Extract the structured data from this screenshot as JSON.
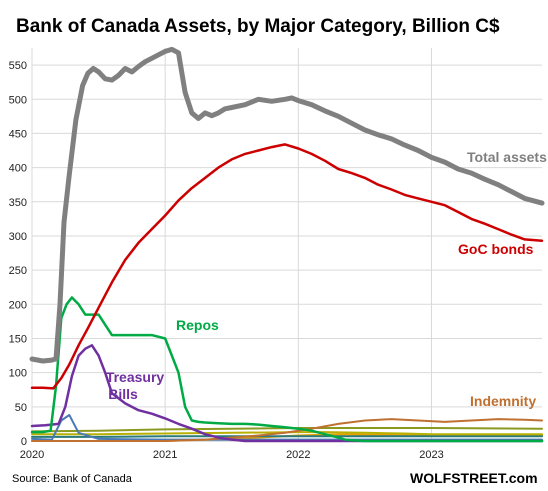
{
  "chart_data": {
    "type": "line",
    "title": "Bank of Canada Assets, by Major Category, Billion C$",
    "source": "Source: Bank of Canada",
    "brand": "WOLFSTREET.com",
    "ylim": [
      0,
      575
    ],
    "yticks": [
      0,
      50,
      100,
      150,
      200,
      250,
      300,
      350,
      400,
      450,
      500,
      550
    ],
    "xlim": [
      2020.0,
      2023.83
    ],
    "xticks": [
      {
        "value": 2020,
        "label": "2020"
      },
      {
        "value": 2021,
        "label": "2021"
      },
      {
        "value": 2022,
        "label": "2022"
      },
      {
        "value": 2023,
        "label": "2023"
      }
    ],
    "grid": true,
    "series": [
      {
        "name": "Total assets",
        "color": "#808080",
        "x": [
          2020.0,
          2020.08,
          2020.14,
          2020.18,
          2020.21,
          2020.24,
          2020.28,
          2020.33,
          2020.38,
          2020.42,
          2020.46,
          2020.5,
          2020.55,
          2020.6,
          2020.65,
          2020.7,
          2020.75,
          2020.8,
          2020.85,
          2020.9,
          2020.95,
          2021.0,
          2021.05,
          2021.1,
          2021.15,
          2021.2,
          2021.25,
          2021.3,
          2021.35,
          2021.4,
          2021.45,
          2021.5,
          2021.6,
          2021.7,
          2021.8,
          2021.9,
          2021.95,
          2022.0,
          2022.1,
          2022.2,
          2022.3,
          2022.4,
          2022.5,
          2022.6,
          2022.7,
          2022.8,
          2022.9,
          2023.0,
          2023.1,
          2023.2,
          2023.3,
          2023.4,
          2023.5,
          2023.6,
          2023.7,
          2023.83
        ],
        "values": [
          120,
          117,
          118,
          120,
          200,
          320,
          390,
          470,
          520,
          538,
          545,
          540,
          530,
          528,
          535,
          545,
          540,
          548,
          555,
          560,
          565,
          570,
          573,
          568,
          510,
          480,
          472,
          480,
          476,
          480,
          486,
          488,
          492,
          500,
          497,
          500,
          502,
          498,
          492,
          483,
          475,
          465,
          455,
          448,
          442,
          433,
          425,
          415,
          408,
          398,
          392,
          383,
          375,
          365,
          355,
          348
        ]
      },
      {
        "name": "GoC bonds",
        "color": "#cc0000",
        "x": [
          2020.0,
          2020.08,
          2020.16,
          2020.22,
          2020.28,
          2020.35,
          2020.42,
          2020.5,
          2020.6,
          2020.7,
          2020.8,
          2020.9,
          2021.0,
          2021.1,
          2021.2,
          2021.3,
          2021.4,
          2021.5,
          2021.6,
          2021.7,
          2021.8,
          2021.9,
          2022.0,
          2022.1,
          2022.2,
          2022.3,
          2022.4,
          2022.5,
          2022.6,
          2022.7,
          2022.8,
          2022.9,
          2023.0,
          2023.1,
          2023.2,
          2023.3,
          2023.4,
          2023.5,
          2023.6,
          2023.7,
          2023.83
        ],
        "values": [
          78,
          78,
          77,
          92,
          112,
          140,
          165,
          195,
          232,
          265,
          290,
          310,
          330,
          352,
          370,
          385,
          400,
          412,
          420,
          425,
          430,
          434,
          428,
          420,
          410,
          398,
          392,
          385,
          375,
          368,
          360,
          355,
          350,
          345,
          335,
          325,
          318,
          310,
          302,
          295,
          293
        ]
      },
      {
        "name": "Repos",
        "color": "#00aa44",
        "x": [
          2020.0,
          2020.08,
          2020.14,
          2020.18,
          2020.22,
          2020.26,
          2020.3,
          2020.35,
          2020.4,
          2020.45,
          2020.5,
          2020.55,
          2020.6,
          2020.7,
          2020.8,
          2020.9,
          2021.0,
          2021.1,
          2021.15,
          2021.2,
          2021.25,
          2021.3,
          2021.4,
          2021.5,
          2021.6,
          2021.7,
          2021.8,
          2021.9,
          2022.0,
          2022.1,
          2022.2,
          2022.3,
          2022.35,
          2022.4,
          2022.5,
          2023.0,
          2023.83
        ],
        "values": [
          13,
          13,
          15,
          80,
          180,
          200,
          210,
          200,
          185,
          185,
          185,
          170,
          155,
          155,
          155,
          155,
          150,
          100,
          50,
          30,
          28,
          27,
          26,
          25,
          25,
          24,
          22,
          20,
          18,
          15,
          10,
          5,
          2,
          1,
          0,
          0,
          0
        ]
      },
      {
        "name": "Treasury Bills",
        "color": "#7030a0",
        "x": [
          2020.0,
          2020.1,
          2020.2,
          2020.25,
          2020.3,
          2020.35,
          2020.4,
          2020.45,
          2020.5,
          2020.55,
          2020.6,
          2020.7,
          2020.8,
          2020.9,
          2021.0,
          2021.1,
          2021.2,
          2021.3,
          2021.4,
          2021.5,
          2021.6,
          2022.0,
          2023.83
        ],
        "values": [
          22,
          23,
          25,
          50,
          95,
          125,
          135,
          140,
          125,
          100,
          70,
          55,
          45,
          40,
          33,
          25,
          18,
          10,
          5,
          2,
          0,
          0,
          0
        ]
      },
      {
        "name": "Indemnity",
        "color": "#c07030",
        "x": [
          2020.0,
          2021.0,
          2021.3,
          2021.5,
          2021.7,
          2021.9,
          2022.1,
          2022.3,
          2022.5,
          2022.7,
          2022.9,
          2023.1,
          2023.3,
          2023.5,
          2023.7,
          2023.83
        ],
        "values": [
          0,
          0,
          2,
          5,
          8,
          12,
          18,
          25,
          30,
          32,
          30,
          28,
          30,
          32,
          31,
          30
        ]
      },
      {
        "name": "",
        "color": "#4a7ab5",
        "x": [
          2020.0,
          2020.15,
          2020.22,
          2020.28,
          2020.35,
          2020.5,
          2021.0,
          2021.5,
          2022.0,
          2022.5,
          2023.0,
          2023.83
        ],
        "values": [
          3,
          2,
          30,
          38,
          12,
          3,
          2,
          2,
          2,
          2,
          2,
          2
        ]
      },
      {
        "name": "",
        "color": "#b8b000",
        "x": [
          2020.0,
          2020.5,
          2021.0,
          2021.5,
          2022.0,
          2022.2,
          2022.5,
          2022.8,
          2023.0,
          2023.83
        ],
        "values": [
          10,
          10,
          11,
          12,
          13,
          13,
          12,
          11,
          10,
          10
        ]
      },
      {
        "name": "",
        "color": "#8a9a20",
        "x": [
          2020.0,
          2020.5,
          2021.0,
          2021.5,
          2022.0,
          2022.5,
          2023.0,
          2023.83
        ],
        "values": [
          14,
          15,
          17,
          18,
          19,
          19,
          19,
          18
        ]
      },
      {
        "name": "",
        "color": "#2a7a7a",
        "x": [
          2020.0,
          2020.5,
          2021.0,
          2021.5,
          2022.0,
          2022.5,
          2023.0,
          2023.83
        ],
        "values": [
          6,
          6,
          7,
          7,
          7,
          7,
          7,
          7
        ]
      },
      {
        "name": "",
        "color": "#e8a000",
        "x": [
          2020.0,
          2021.0,
          2021.5,
          2022.0,
          2022.3,
          2022.6,
          2023.0,
          2023.83
        ],
        "values": [
          0,
          0,
          3,
          8,
          10,
          9,
          8,
          8
        ]
      }
    ]
  }
}
